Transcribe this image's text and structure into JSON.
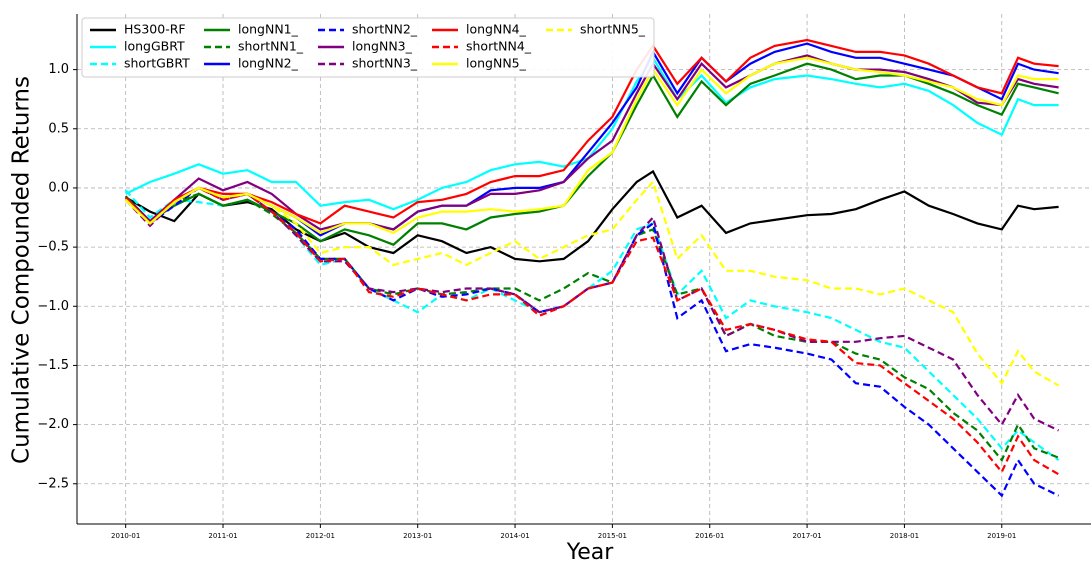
{
  "chart_data": {
    "type": "line",
    "xlabel": "Year",
    "ylabel": "Cumulative Compounded Returns",
    "x": [
      "2010-01",
      "2010-04",
      "2010-07",
      "2010-10",
      "2011-01",
      "2011-04",
      "2011-07",
      "2011-10",
      "2012-01",
      "2012-04",
      "2012-07",
      "2012-10",
      "2013-01",
      "2013-04",
      "2013-07",
      "2013-10",
      "2014-01",
      "2014-04",
      "2014-07",
      "2014-10",
      "2015-01",
      "2015-04",
      "2015-06",
      "2015-09",
      "2015-12",
      "2016-03",
      "2016-06",
      "2016-09",
      "2017-01",
      "2017-04",
      "2017-07",
      "2017-10",
      "2018-01",
      "2018-04",
      "2018-07",
      "2018-10",
      "2019-01",
      "2019-03",
      "2019-05",
      "2019-08"
    ],
    "xlim": [
      "2009-07",
      "2019-12"
    ],
    "xticks": [
      "2010-01",
      "2011-01",
      "2012-01",
      "2013-01",
      "2014-01",
      "2015-01",
      "2016-01",
      "2017-01",
      "2018-01",
      "2019-01"
    ],
    "ylim": [
      -2.84,
      1.47
    ],
    "yticks": [
      {
        "value": -2.5,
        "label": "−2.5"
      },
      {
        "value": -2.0,
        "label": "−2.0"
      },
      {
        "value": -1.5,
        "label": "−1.5"
      },
      {
        "value": -1.0,
        "label": "−1.0"
      },
      {
        "value": -0.5,
        "label": "−0.5"
      },
      {
        "value": 0,
        "label": "0.0"
      },
      0.5,
      {
        "value": 1.0,
        "label": "1.0"
      }
    ],
    "grid": true,
    "legend": "upper left",
    "legend_columns": 5,
    "series": [
      {
        "name": "HS300-RF",
        "color": "#000000",
        "linestyle": "solid",
        "values": [
          -0.08,
          -0.2,
          -0.28,
          -0.05,
          -0.15,
          -0.12,
          -0.18,
          -0.35,
          -0.45,
          -0.38,
          -0.5,
          -0.55,
          -0.4,
          -0.45,
          -0.55,
          -0.5,
          -0.6,
          -0.62,
          -0.6,
          -0.45,
          -0.18,
          0.05,
          0.14,
          -0.25,
          -0.15,
          -0.38,
          -0.3,
          -0.27,
          -0.23,
          -0.22,
          -0.18,
          -0.1,
          -0.03,
          -0.15,
          -0.22,
          -0.3,
          -0.35,
          -0.15,
          -0.18,
          -0.16
        ]
      },
      {
        "name": "longGBRT",
        "color": "#00ffff",
        "linestyle": "solid",
        "values": [
          -0.05,
          0.05,
          0.12,
          0.2,
          0.12,
          0.15,
          0.05,
          0.05,
          -0.15,
          -0.12,
          -0.1,
          -0.18,
          -0.1,
          0.0,
          0.05,
          0.15,
          0.2,
          0.22,
          0.18,
          0.25,
          0.5,
          0.9,
          1.1,
          0.75,
          0.95,
          0.72,
          0.85,
          0.92,
          0.95,
          0.92,
          0.88,
          0.85,
          0.88,
          0.82,
          0.7,
          0.55,
          0.45,
          0.75,
          0.7,
          0.7
        ]
      },
      {
        "name": "shortGBRT",
        "color": "#00ffff",
        "linestyle": "dashed",
        "values": [
          -0.02,
          -0.25,
          -0.1,
          -0.12,
          -0.15,
          -0.1,
          -0.2,
          -0.4,
          -0.65,
          -0.6,
          -0.85,
          -0.95,
          -1.05,
          -0.9,
          -0.95,
          -0.85,
          -0.95,
          -1.05,
          -1.0,
          -0.85,
          -0.7,
          -0.35,
          -0.3,
          -0.9,
          -0.7,
          -1.1,
          -0.95,
          -1.0,
          -1.05,
          -1.1,
          -1.2,
          -1.3,
          -1.35,
          -1.55,
          -1.75,
          -1.95,
          -2.2,
          -2.05,
          -2.15,
          -2.3
        ]
      },
      {
        "name": "longNN1_",
        "color": "#008000",
        "linestyle": "solid",
        "values": [
          -0.07,
          -0.28,
          -0.15,
          -0.05,
          -0.15,
          -0.1,
          -0.2,
          -0.3,
          -0.45,
          -0.35,
          -0.4,
          -0.48,
          -0.3,
          -0.3,
          -0.35,
          -0.25,
          -0.22,
          -0.2,
          -0.15,
          0.1,
          0.3,
          0.7,
          0.95,
          0.6,
          0.9,
          0.7,
          0.88,
          0.95,
          1.05,
          1.0,
          0.92,
          0.95,
          0.95,
          0.88,
          0.8,
          0.7,
          0.62,
          0.88,
          0.85,
          0.8
        ]
      },
      {
        "name": "shortNN1_",
        "color": "#008000",
        "linestyle": "dashed",
        "values": [
          -0.08,
          -0.3,
          -0.12,
          -0.05,
          -0.15,
          -0.1,
          -0.22,
          -0.38,
          -0.6,
          -0.6,
          -0.85,
          -0.9,
          -0.85,
          -0.9,
          -0.88,
          -0.85,
          -0.85,
          -0.95,
          -0.85,
          -0.72,
          -0.8,
          -0.4,
          -0.35,
          -0.9,
          -0.85,
          -1.25,
          -1.15,
          -1.25,
          -1.3,
          -1.3,
          -1.4,
          -1.45,
          -1.6,
          -1.7,
          -1.9,
          -2.05,
          -2.3,
          -2.0,
          -2.2,
          -2.28
        ]
      },
      {
        "name": "longNN2_",
        "color": "#0000ff",
        "linestyle": "solid",
        "values": [
          -0.08,
          -0.28,
          -0.12,
          0.0,
          -0.08,
          -0.05,
          -0.15,
          -0.25,
          -0.4,
          -0.3,
          -0.3,
          -0.35,
          -0.2,
          -0.15,
          -0.15,
          -0.02,
          0.0,
          0.0,
          0.05,
          0.3,
          0.55,
          0.85,
          1.15,
          0.8,
          1.1,
          0.9,
          1.05,
          1.15,
          1.22,
          1.15,
          1.1,
          1.1,
          1.05,
          1.0,
          0.95,
          0.85,
          0.75,
          1.05,
          1.0,
          0.97
        ]
      },
      {
        "name": "shortNN2_",
        "color": "#0000ff",
        "linestyle": "dashed",
        "values": [
          -0.1,
          -0.3,
          -0.15,
          0.0,
          -0.1,
          -0.05,
          -0.2,
          -0.35,
          -0.6,
          -0.6,
          -0.85,
          -0.95,
          -0.85,
          -0.92,
          -0.9,
          -0.85,
          -0.9,
          -1.05,
          -1.0,
          -0.85,
          -0.8,
          -0.4,
          -0.3,
          -1.1,
          -0.95,
          -1.38,
          -1.32,
          -1.35,
          -1.4,
          -1.45,
          -1.65,
          -1.68,
          -1.85,
          -2.0,
          -2.2,
          -2.4,
          -2.6,
          -2.3,
          -2.5,
          -2.6
        ]
      },
      {
        "name": "longNN3_",
        "color": "#800080",
        "linestyle": "solid",
        "values": [
          -0.08,
          -0.28,
          -0.1,
          0.08,
          -0.02,
          0.05,
          -0.05,
          -0.22,
          -0.35,
          -0.3,
          -0.3,
          -0.35,
          -0.2,
          -0.15,
          -0.15,
          -0.05,
          -0.05,
          -0.02,
          0.05,
          0.25,
          0.4,
          0.8,
          1.05,
          0.75,
          1.05,
          0.85,
          0.95,
          1.05,
          1.12,
          1.05,
          1.0,
          1.0,
          0.98,
          0.92,
          0.85,
          0.72,
          0.7,
          0.92,
          0.88,
          0.85
        ]
      },
      {
        "name": "shortNN3_",
        "color": "#800080",
        "linestyle": "dashed",
        "values": [
          -0.1,
          -0.32,
          -0.12,
          0.0,
          -0.1,
          -0.05,
          -0.2,
          -0.4,
          -0.62,
          -0.62,
          -0.85,
          -0.88,
          -0.85,
          -0.88,
          -0.85,
          -0.85,
          -0.9,
          -1.05,
          -1.0,
          -0.85,
          -0.8,
          -0.4,
          -0.25,
          -0.95,
          -0.85,
          -1.25,
          -1.15,
          -1.2,
          -1.3,
          -1.3,
          -1.3,
          -1.27,
          -1.25,
          -1.35,
          -1.45,
          -1.75,
          -2.0,
          -1.75,
          -1.95,
          -2.05
        ]
      },
      {
        "name": "longNN4_",
        "color": "#ff0000",
        "linestyle": "solid",
        "values": [
          -0.08,
          -0.3,
          -0.1,
          0.0,
          -0.05,
          -0.05,
          -0.12,
          -0.22,
          -0.3,
          -0.15,
          -0.2,
          -0.25,
          -0.12,
          -0.1,
          -0.05,
          0.05,
          0.1,
          0.1,
          0.15,
          0.4,
          0.6,
          1.0,
          1.2,
          0.88,
          1.1,
          0.9,
          1.1,
          1.2,
          1.25,
          1.2,
          1.15,
          1.15,
          1.12,
          1.05,
          0.95,
          0.85,
          0.8,
          1.1,
          1.05,
          1.03
        ]
      },
      {
        "name": "shortNN4_",
        "color": "#ff0000",
        "linestyle": "dashed",
        "values": [
          -0.1,
          -0.3,
          -0.12,
          0.0,
          -0.1,
          -0.05,
          -0.2,
          -0.38,
          -0.62,
          -0.6,
          -0.88,
          -0.92,
          -0.85,
          -0.9,
          -0.95,
          -0.9,
          -0.9,
          -1.08,
          -1.0,
          -0.85,
          -0.8,
          -0.45,
          -0.42,
          -0.95,
          -0.85,
          -1.2,
          -1.15,
          -1.2,
          -1.28,
          -1.3,
          -1.48,
          -1.5,
          -1.65,
          -1.8,
          -1.95,
          -2.15,
          -2.4,
          -2.1,
          -2.3,
          -2.42
        ]
      },
      {
        "name": "longNN5_",
        "color": "#ffff00",
        "linestyle": "solid",
        "values": [
          -0.1,
          -0.3,
          -0.12,
          0.0,
          -0.08,
          -0.05,
          -0.15,
          -0.25,
          -0.38,
          -0.3,
          -0.3,
          -0.38,
          -0.25,
          -0.2,
          -0.2,
          -0.18,
          -0.2,
          -0.18,
          -0.15,
          0.15,
          0.3,
          0.75,
          1.0,
          0.7,
          1.0,
          0.8,
          0.95,
          1.05,
          1.1,
          1.05,
          1.0,
          0.98,
          0.95,
          0.9,
          0.85,
          0.75,
          0.7,
          0.95,
          0.92,
          0.92
        ]
      },
      {
        "name": "shortNN5_",
        "color": "#ffff00",
        "linestyle": "dashed",
        "values": [
          -0.1,
          -0.3,
          -0.12,
          0.0,
          -0.08,
          -0.05,
          -0.15,
          -0.3,
          -0.55,
          -0.5,
          -0.5,
          -0.65,
          -0.6,
          -0.55,
          -0.65,
          -0.55,
          -0.45,
          -0.6,
          -0.5,
          -0.4,
          -0.35,
          -0.1,
          0.05,
          -0.6,
          -0.4,
          -0.7,
          -0.7,
          -0.75,
          -0.78,
          -0.85,
          -0.85,
          -0.9,
          -0.85,
          -0.95,
          -1.05,
          -1.4,
          -1.65,
          -1.38,
          -1.55,
          -1.67
        ]
      }
    ]
  }
}
